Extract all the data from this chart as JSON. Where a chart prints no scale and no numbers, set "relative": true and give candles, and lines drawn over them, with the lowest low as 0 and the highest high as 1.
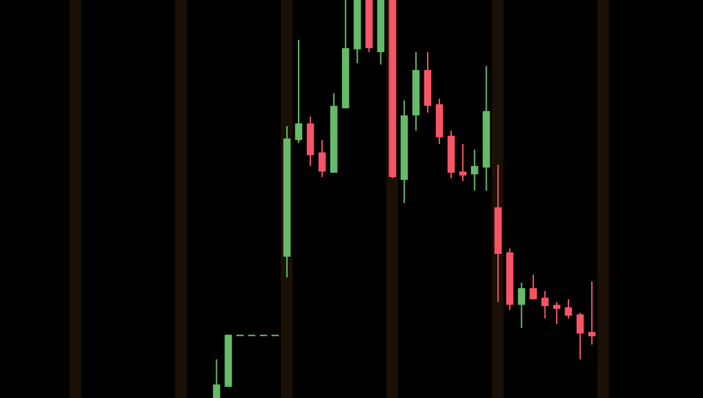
{
  "chart_data": {
    "type": "candlestick",
    "relative": true,
    "categories": [
      null,
      null,
      null,
      null,
      null,
      null,
      null,
      null,
      null,
      null,
      null,
      null,
      null,
      null,
      null,
      null,
      null,
      null,
      null,
      null,
      null,
      null,
      null,
      null,
      null,
      null,
      null,
      null,
      null,
      null,
      null,
      null,
      null,
      null,
      null,
      null,
      null,
      null,
      null,
      null,
      null,
      null,
      null,
      null,
      null,
      null,
      null,
      null,
      null,
      null,
      null,
      null,
      null,
      null,
      null,
      null,
      null,
      null,
      null
    ],
    "ohlc": [
      null,
      null,
      null,
      null,
      null,
      null,
      null,
      null,
      null,
      null,
      null,
      null,
      null,
      null,
      null,
      null,
      null,
      [
        0,
        0.097,
        0,
        0.034
      ],
      [
        0.028,
        0.159,
        0.028,
        0.159
      ],
      [
        0.159,
        0.159,
        0.159,
        0.159
      ],
      [
        0.159,
        0.159,
        0.159,
        0.159
      ],
      [
        0.159,
        0.159,
        0.159,
        0.159
      ],
      [
        0.159,
        0.159,
        0.159,
        0.159
      ],
      [
        0.355,
        0.683,
        0.303,
        0.652
      ],
      [
        0.648,
        0.9,
        0.641,
        0.69
      ],
      [
        0.69,
        0.707,
        0.583,
        0.61
      ],
      [
        0.617,
        0.648,
        0.555,
        0.569
      ],
      [
        0.566,
        0.766,
        0.566,
        0.734
      ],
      [
        0.728,
        1,
        0.728,
        0.879
      ],
      [
        0.876,
        1,
        0.841,
        1
      ],
      [
        1,
        1,
        0.869,
        0.879
      ],
      [
        0.869,
        1,
        0.838,
        1
      ],
      [
        1,
        1,
        0.552,
        0.555
      ],
      [
        0.548,
        0.748,
        0.49,
        0.71
      ],
      [
        0.71,
        0.869,
        0.672,
        0.824
      ],
      [
        0.824,
        0.869,
        0.717,
        0.734
      ],
      [
        0.738,
        0.752,
        0.638,
        0.655
      ],
      [
        0.659,
        0.672,
        0.552,
        0.566
      ],
      [
        0.569,
        0.638,
        0.545,
        0.559
      ],
      [
        0.562,
        0.624,
        0.521,
        0.583
      ],
      [
        0.579,
        0.834,
        0.521,
        0.721
      ],
      [
        0.479,
        0.586,
        0.241,
        0.362
      ],
      [
        0.366,
        0.376,
        0.221,
        0.234
      ],
      [
        0.234,
        0.29,
        0.176,
        0.276
      ],
      [
        0.276,
        0.31,
        0.248,
        0.248
      ],
      [
        0.252,
        0.269,
        0.2,
        0.231
      ],
      [
        0.234,
        0.241,
        0.186,
        0.224
      ],
      [
        0.228,
        0.248,
        0.2,
        0.207
      ],
      [
        0.21,
        0.214,
        0.097,
        0.162
      ],
      [
        0.166,
        0.293,
        0.134,
        0.155
      ],
      null,
      null,
      null,
      null,
      null,
      null,
      null,
      null,
      null
    ],
    "colors": [
      null,
      null,
      null,
      null,
      null,
      null,
      null,
      null,
      null,
      null,
      null,
      null,
      null,
      null,
      null,
      null,
      null,
      "#66bb6a",
      "#66bb6a",
      "#66bb6a",
      "#66bb6a",
      "#66bb6a",
      "#66bb6a",
      "#66bb6a",
      "#66bb6a",
      "#f75566",
      "#f75566",
      "#66bb6a",
      "#66bb6a",
      "#66bb6a",
      "#f75566",
      "#66bb6a",
      "#f75566",
      "#66bb6a",
      "#66bb6a",
      "#f75566",
      "#f75566",
      "#f75566",
      "#f75566",
      "#66bb6a",
      "#66bb6a",
      "#f75566",
      "#f75566",
      "#66bb6a",
      "#f75566",
      "#f75566",
      "#f75566",
      "#f75566",
      "#f75566",
      "#f75566",
      null,
      null,
      null,
      null,
      null,
      null,
      null,
      null,
      null
    ]
  }
}
